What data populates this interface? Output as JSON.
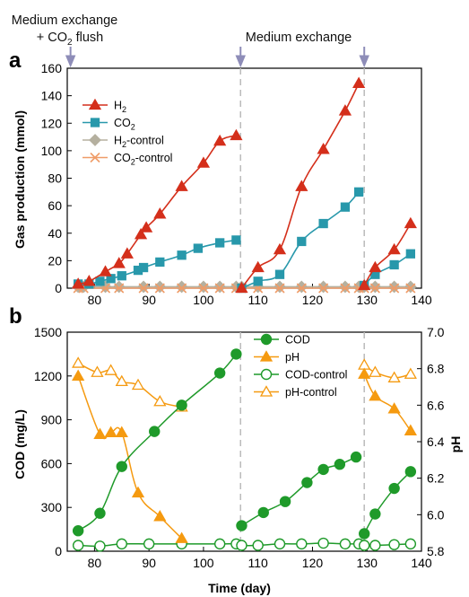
{
  "annotations": {
    "first_event_line1": "Medium exchange",
    "first_event_line2_pre": "+ CO",
    "first_event_line2_sub": "2",
    "first_event_line2_post": " flush",
    "second_event": "Medium exchange"
  },
  "colors": {
    "h2": "#d42f1b",
    "co2": "#2898ab",
    "h2_control": "#b5b09f",
    "co2_control": "#ef9c68",
    "cod": "#1f9a2a",
    "ph": "#f59a10",
    "divider": "#bbbbbb",
    "arrow": "#8e8db8"
  },
  "chart_data": [
    {
      "panel_label": "a",
      "type": "line",
      "xlim": [
        75,
        140
      ],
      "ylim": [
        0,
        160
      ],
      "xticks": [
        80,
        90,
        100,
        110,
        120,
        130,
        140
      ],
      "yticks": [
        0,
        20,
        40,
        60,
        80,
        100,
        120,
        140,
        160
      ],
      "xlabel": "",
      "ylabel": "Gas production (mmol)",
      "event_days": [
        75.6,
        106.8,
        129.5
      ],
      "legend_position": "top-left",
      "series": [
        {
          "name": "H2",
          "name_pre": "H",
          "name_sub": "2",
          "marker": "triangle",
          "color_key": "h2",
          "segments": [
            [
              [
                77,
                3
              ],
              [
                79,
                5
              ],
              [
                82,
                12
              ],
              [
                84.5,
                18
              ],
              [
                86,
                25
              ],
              [
                88.5,
                39
              ],
              [
                89.5,
                44
              ],
              [
                92,
                54
              ],
              [
                96,
                74
              ],
              [
                100,
                91
              ],
              [
                103,
                107
              ],
              [
                106,
                111
              ]
            ],
            [
              [
                107,
                0
              ],
              [
                110,
                15
              ],
              [
                114,
                28
              ],
              [
                118,
                74
              ],
              [
                122,
                101
              ],
              [
                126,
                129
              ],
              [
                128.5,
                149
              ]
            ],
            [
              [
                129.5,
                2
              ],
              [
                131.5,
                15
              ],
              [
                135,
                28
              ],
              [
                138,
                47
              ]
            ]
          ]
        },
        {
          "name": "CO2",
          "name_pre": "CO",
          "name_sub": "2",
          "marker": "square",
          "color_key": "co2",
          "segments": [
            [
              [
                77,
                3
              ],
              [
                79,
                3
              ],
              [
                81,
                5
              ],
              [
                83,
                7
              ],
              [
                85,
                9
              ],
              [
                88,
                13
              ],
              [
                89,
                15
              ],
              [
                92,
                19
              ],
              [
                96,
                24
              ],
              [
                99,
                29
              ],
              [
                103,
                33
              ],
              [
                106,
                35
              ]
            ],
            [
              [
                107,
                0
              ],
              [
                110,
                5
              ],
              [
                114,
                10
              ],
              [
                118,
                34
              ],
              [
                122,
                47
              ],
              [
                126,
                59
              ],
              [
                128.5,
                70
              ]
            ],
            [
              [
                129.5,
                2
              ],
              [
                131.5,
                10
              ],
              [
                135,
                17
              ],
              [
                138,
                25
              ]
            ]
          ]
        },
        {
          "name": "H2-control",
          "name_pre": "H",
          "name_sub": "2",
          "name_post": "-control",
          "marker": "diamond",
          "color_key": "h2_control",
          "segments": [
            [
              [
                77,
                1
              ],
              [
                78,
                1
              ],
              [
                82,
                1
              ],
              [
                84.5,
                1
              ],
              [
                89,
                1
              ],
              [
                92,
                1
              ],
              [
                96,
                1
              ],
              [
                100,
                1
              ],
              [
                103,
                1
              ],
              [
                106,
                1
              ]
            ],
            [
              [
                107,
                1
              ],
              [
                110,
                1
              ],
              [
                114,
                1
              ],
              [
                118,
                1
              ],
              [
                122,
                1
              ],
              [
                126,
                1
              ],
              [
                128.5,
                1
              ]
            ],
            [
              [
                129.5,
                1
              ],
              [
                131.5,
                1
              ],
              [
                135,
                1
              ],
              [
                138,
                1
              ]
            ]
          ]
        },
        {
          "name": "CO2-control",
          "name_pre": "CO",
          "name_sub": "2",
          "name_post": "-control",
          "marker": "x",
          "color_key": "co2_control",
          "segments": [
            [
              [
                77,
                0
              ],
              [
                78,
                0
              ],
              [
                82,
                0
              ],
              [
                84.5,
                0
              ],
              [
                89,
                0
              ],
              [
                92,
                0
              ],
              [
                96,
                0
              ],
              [
                100,
                0
              ],
              [
                103,
                0
              ],
              [
                106,
                0
              ]
            ],
            [
              [
                107,
                0
              ],
              [
                110,
                0
              ],
              [
                114,
                0
              ],
              [
                118,
                0
              ],
              [
                122,
                0
              ],
              [
                126,
                0
              ],
              [
                128.5,
                0
              ]
            ],
            [
              [
                129.5,
                0
              ],
              [
                131.5,
                0
              ],
              [
                135,
                0
              ],
              [
                138,
                0
              ]
            ]
          ]
        }
      ]
    },
    {
      "panel_label": "b",
      "type": "line",
      "xlim": [
        75,
        140
      ],
      "ylim": [
        0,
        1500
      ],
      "y2lim": [
        5.8,
        7.0
      ],
      "xticks": [
        80,
        90,
        100,
        110,
        120,
        130,
        140
      ],
      "yticks": [
        0,
        300,
        600,
        900,
        1200,
        1500
      ],
      "y2ticks": [
        "5.8",
        "6.0",
        "6.2",
        "6.4",
        "6.6",
        "6.8",
        "7.0"
      ],
      "xlabel": "Time (day)",
      "ylabel": "COD (mg/L)",
      "y2label": "pH",
      "event_days": [
        106.8,
        129.5
      ],
      "legend_position": "top-center",
      "series": [
        {
          "name": "COD",
          "axis": "left",
          "marker": "circle",
          "fill": true,
          "color_key": "cod",
          "segments": [
            [
              [
                77,
                140
              ],
              [
                81,
                260
              ],
              [
                85,
                580
              ],
              [
                91,
                820
              ],
              [
                96,
                1000
              ],
              [
                103,
                1220
              ],
              [
                106,
                1350
              ]
            ],
            [
              [
                107,
                175
              ],
              [
                111,
                265
              ],
              [
                115,
                340
              ],
              [
                119,
                470
              ],
              [
                122,
                560
              ],
              [
                125,
                595
              ],
              [
                128,
                645
              ]
            ],
            [
              [
                129.5,
                120
              ],
              [
                131.5,
                255
              ],
              [
                135,
                430
              ],
              [
                138,
                545
              ]
            ]
          ]
        },
        {
          "name": "pH",
          "axis": "right",
          "marker": "triangle",
          "fill": true,
          "color_key": "ph",
          "segments": [
            [
              [
                77,
                6.76
              ],
              [
                81,
                6.44
              ],
              [
                83,
                6.45
              ],
              [
                85,
                6.45
              ],
              [
                88,
                6.12
              ],
              [
                92,
                5.99
              ],
              [
                96,
                5.87
              ]
            ],
            [
              [
                129.5,
                6.77
              ],
              [
                131.5,
                6.65
              ],
              [
                135,
                6.58
              ],
              [
                138,
                6.46
              ]
            ]
          ]
        },
        {
          "name": "COD-control",
          "axis": "left",
          "marker": "circle",
          "fill": false,
          "color_key": "cod",
          "segments": [
            [
              [
                77,
                40
              ],
              [
                81,
                35
              ],
              [
                85,
                50
              ],
              [
                90,
                50
              ],
              [
                96,
                50
              ],
              [
                103,
                50
              ],
              [
                106,
                50
              ],
              [
                107,
                40
              ],
              [
                110,
                40
              ],
              [
                114,
                50
              ],
              [
                118,
                50
              ],
              [
                122,
                55
              ],
              [
                126,
                50
              ],
              [
                128.5,
                50
              ],
              [
                129.5,
                40
              ],
              [
                131.5,
                40
              ],
              [
                135,
                45
              ],
              [
                138,
                50
              ]
            ]
          ]
        },
        {
          "name": "pH-control",
          "axis": "right",
          "marker": "triangle",
          "fill": false,
          "color_key": "ph",
          "segments": [
            [
              [
                77,
                6.83
              ],
              [
                80.5,
                6.78
              ],
              [
                83,
                6.79
              ],
              [
                85,
                6.73
              ],
              [
                88,
                6.71
              ],
              [
                92,
                6.62
              ],
              [
                96,
                6.59
              ]
            ],
            [
              [
                129.5,
                6.82
              ],
              [
                131.5,
                6.78
              ],
              [
                135,
                6.75
              ],
              [
                138,
                6.77
              ]
            ]
          ]
        }
      ]
    }
  ]
}
